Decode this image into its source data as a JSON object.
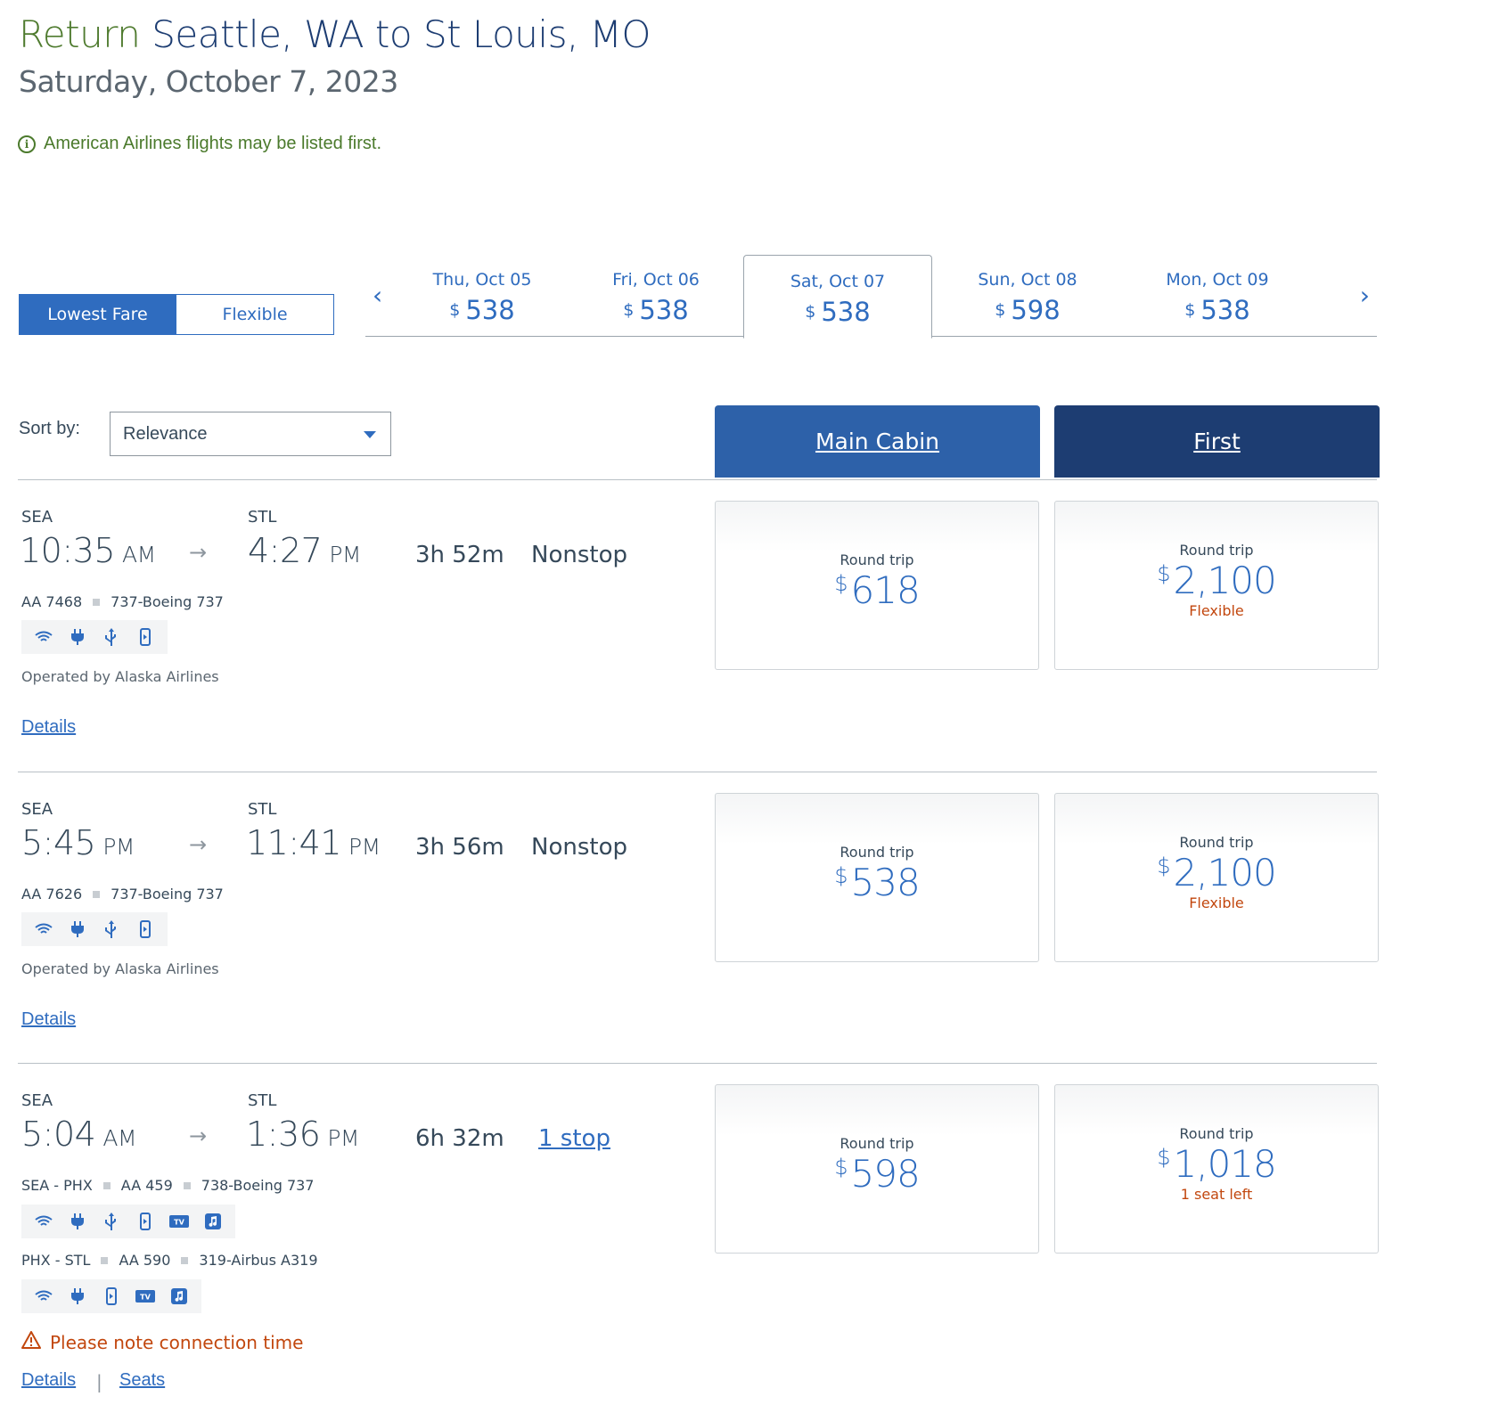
{
  "header": {
    "return_word": "Return",
    "route": "Seattle, WA to St Louis, MO",
    "date": "Saturday, October 7, 2023",
    "notice": "American Airlines flights may be listed first."
  },
  "fare_toggle": {
    "lowest": "Lowest Fare",
    "flexible": "Flexible"
  },
  "dates": [
    {
      "label": "Thu, Oct 05",
      "currency": "$",
      "price": "538"
    },
    {
      "label": "Fri, Oct 06",
      "currency": "$",
      "price": "538"
    },
    {
      "label": "Sat, Oct 07",
      "currency": "$",
      "price": "538",
      "selected": true
    },
    {
      "label": "Sun, Oct 08",
      "currency": "$",
      "price": "598"
    },
    {
      "label": "Mon, Oct 09",
      "currency": "$",
      "price": "538"
    }
  ],
  "sort": {
    "label": "Sort by:",
    "value": "Relevance"
  },
  "cabins": {
    "main": "Main Cabin",
    "first": "First"
  },
  "flights": [
    {
      "origin": "SEA",
      "dest": "STL",
      "depart": "10:35",
      "depart_ampm": "AM",
      "arrive": "4:27",
      "arrive_ampm": "PM",
      "duration": "3h  52m",
      "stops": "Nonstop",
      "segment": {
        "flight": "AA 7468",
        "aircraft": "737-Boeing 737"
      },
      "amenities": [
        "wifi-icon",
        "power-icon",
        "usb-icon",
        "mobile-icon"
      ],
      "operated": "Operated by Alaska Airlines",
      "details": "Details",
      "main": {
        "label": "Round trip",
        "currency": "$",
        "price": "618",
        "note": ""
      },
      "first": {
        "label": "Round trip",
        "currency": "$",
        "price": "2,100",
        "note": "Flexible"
      }
    },
    {
      "origin": "SEA",
      "dest": "STL",
      "depart": "5:45",
      "depart_ampm": "PM",
      "arrive": "11:41",
      "arrive_ampm": "PM",
      "duration": "3h  56m",
      "stops": "Nonstop",
      "segment": {
        "flight": "AA 7626",
        "aircraft": "737-Boeing 737"
      },
      "amenities": [
        "wifi-icon",
        "power-icon",
        "usb-icon",
        "mobile-icon"
      ],
      "operated": "Operated by Alaska Airlines",
      "details": "Details",
      "main": {
        "label": "Round trip",
        "currency": "$",
        "price": "538",
        "note": ""
      },
      "first": {
        "label": "Round trip",
        "currency": "$",
        "price": "2,100",
        "note": "Flexible"
      }
    },
    {
      "origin": "SEA",
      "dest": "STL",
      "depart": "5:04",
      "depart_ampm": "AM",
      "arrive": "1:36",
      "arrive_ampm": "PM",
      "duration": "6h  32m",
      "stops": "1 stop",
      "segments": [
        {
          "route": "SEA - PHX",
          "flight": "AA 459",
          "aircraft": "738-Boeing 737",
          "amenities": [
            "wifi-icon",
            "power-icon",
            "usb-icon",
            "mobile-icon",
            "tv-icon",
            "music-icon"
          ]
        },
        {
          "route": "PHX - STL",
          "flight": "AA 590",
          "aircraft": "319-Airbus A319",
          "amenities": [
            "wifi-icon",
            "power-icon",
            "mobile-icon",
            "tv-icon",
            "music-icon"
          ]
        }
      ],
      "warning": "Please note connection time",
      "details": "Details",
      "seats": "Seats",
      "main": {
        "label": "Round trip",
        "currency": "$",
        "price": "598",
        "note": ""
      },
      "first": {
        "label": "Round trip",
        "currency": "$",
        "price": "1,018",
        "note": "1 seat left"
      }
    }
  ],
  "colors": {
    "accent": "#2f6cbf",
    "main_cabin": "#2d61a9",
    "first_cabin": "#1d3d72",
    "notice_green": "#4b7a2c",
    "warning": "#c2470e"
  }
}
